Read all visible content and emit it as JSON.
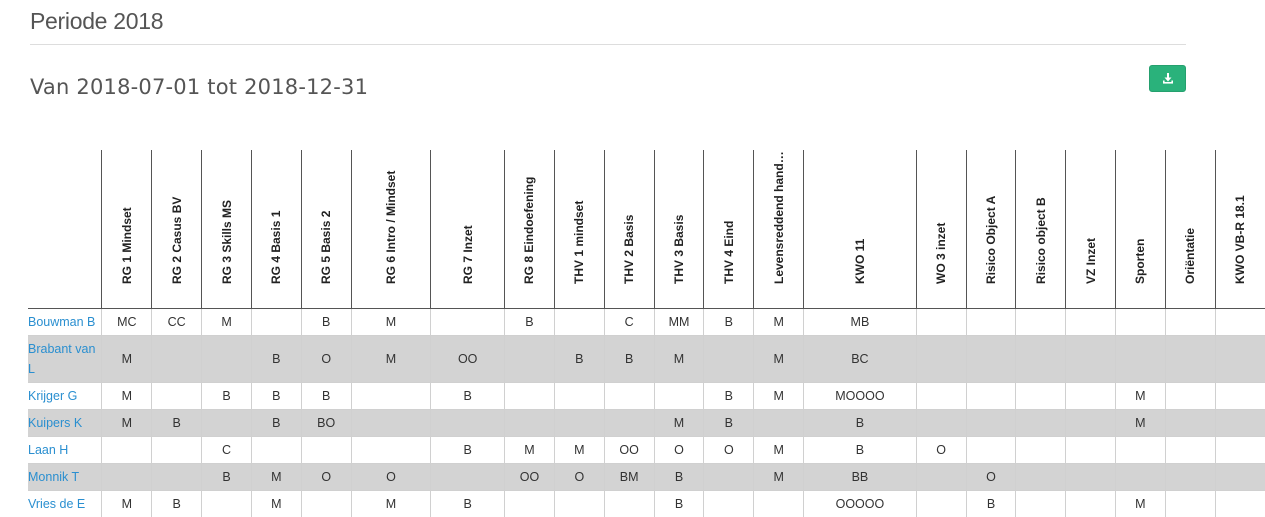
{
  "page": {
    "title": "Periode 2018",
    "range": "Van 2018-07-01 tot 2018-12-31",
    "accent_color": "#2ab27b",
    "link_color": "#2a8fd0",
    "download_icon": "download-icon"
  },
  "columns": [
    "RG 1 Mindset",
    "RG 2 Casus BV",
    "RG 3 Skills MS",
    "RG 4 Basis 1",
    "RG 5 Basis 2",
    "RG 6 Intro / Mindset",
    "RG 7 Inzet",
    "RG 8 Eindoefening",
    "THV 1 mindset",
    "THV 2 Basis",
    "THV 3 Basis",
    "THV 4 Eind",
    "Levensreddend hand…",
    "KWO 11",
    "WO 3 inzet",
    "Risico Object A",
    "Risico object B",
    "VZ Inzet",
    "Sporten",
    "Oriëntatie",
    "KWO VB-R 18.1"
  ],
  "rows": [
    {
      "name": "Bouwman B",
      "cells": [
        "MC",
        "CC",
        "M",
        "",
        "B",
        "M",
        "",
        "B",
        "",
        "C",
        "MM",
        "B",
        "M",
        "MB",
        "",
        "",
        "",
        "",
        "",
        "",
        ""
      ]
    },
    {
      "name": "Brabant van L",
      "cells": [
        "M",
        "",
        "",
        "B",
        "O",
        "M",
        "OO",
        "",
        "B",
        "B",
        "M",
        "",
        "M",
        "BC",
        "",
        "",
        "",
        "",
        "",
        "",
        ""
      ]
    },
    {
      "name": "Krijger G",
      "cells": [
        "M",
        "",
        "B",
        "B",
        "B",
        "",
        "B",
        "",
        "",
        "",
        "",
        "B",
        "M",
        "MOOOO",
        "",
        "",
        "",
        "",
        "M",
        "",
        ""
      ]
    },
    {
      "name": "Kuipers K",
      "cells": [
        "M",
        "B",
        "",
        "B",
        "BO",
        "",
        "",
        "",
        "",
        "",
        "M",
        "B",
        "",
        "B",
        "",
        "",
        "",
        "",
        "M",
        "",
        ""
      ]
    },
    {
      "name": "Laan H",
      "cells": [
        "",
        "",
        "C",
        "",
        "",
        "",
        "B",
        "M",
        "M",
        "OO",
        "O",
        "O",
        "M",
        "B",
        "O",
        "",
        "",
        "",
        "",
        "",
        ""
      ]
    },
    {
      "name": "Monnik T",
      "cells": [
        "",
        "",
        "B",
        "M",
        "O",
        "O",
        "",
        "OO",
        "O",
        "BM",
        "B",
        "",
        "M",
        "BB",
        "",
        "O",
        "",
        "",
        "",
        "",
        ""
      ]
    },
    {
      "name": "Vries de E",
      "cells": [
        "M",
        "B",
        "",
        "M",
        "",
        "M",
        "B",
        "",
        "",
        "",
        "B",
        "",
        "",
        "OOOOO",
        "",
        "B",
        "",
        "",
        "M",
        "",
        ""
      ]
    }
  ]
}
